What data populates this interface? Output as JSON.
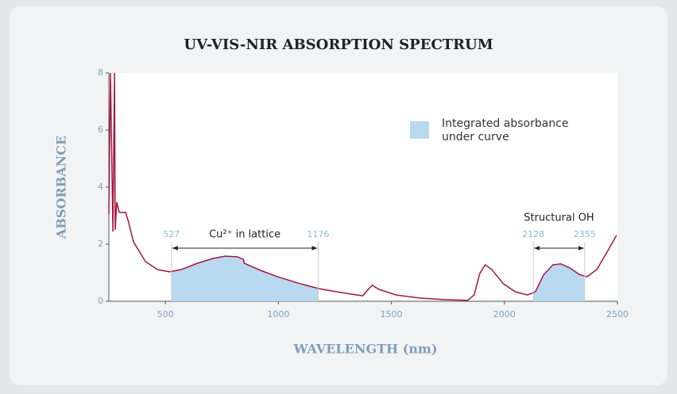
{
  "chart_data": {
    "type": "line",
    "title": "UV-VIS-NIR ABSORPTION SPECTRUM",
    "x_label": "WAVELENGTH (nm)",
    "y_label": "ABSORBANCE",
    "x": [
      250,
      257,
      268,
      275,
      278,
      285,
      296,
      324,
      335,
      359,
      412,
      465,
      518,
      570,
      641,
      711,
      764,
      817,
      845,
      849,
      922,
      996,
      1099,
      1180,
      1275,
      1373,
      1398,
      1415,
      1444,
      1521,
      1627,
      1732,
      1838,
      1866,
      1891,
      1915,
      1944,
      1996,
      2049,
      2102,
      2137,
      2173,
      2215,
      2250,
      2289,
      2331,
      2366,
      2409,
      2454,
      2496
    ],
    "series": [
      {
        "name": "Absorbance",
        "color": "#a3173f",
        "values": [
          3.06,
          8,
          2.44,
          8,
          2.5,
          3.47,
          3.11,
          3.11,
          2.83,
          2.08,
          1.39,
          1.11,
          1.03,
          1.11,
          1.33,
          1.5,
          1.58,
          1.56,
          1.47,
          1.33,
          1.08,
          0.86,
          0.61,
          0.44,
          0.31,
          0.19,
          0.42,
          0.56,
          0.42,
          0.22,
          0.11,
          0.06,
          0.03,
          0.22,
          0.97,
          1.28,
          1.11,
          0.61,
          0.33,
          0.22,
          0.33,
          0.92,
          1.28,
          1.31,
          1.17,
          0.94,
          0.86,
          1.11,
          1.72,
          2.31
        ]
      }
    ],
    "regions": [
      {
        "start": 527,
        "end": 1176,
        "label": "Cu²⁺ in lattice"
      },
      {
        "start": 2128,
        "end": 2355,
        "label": "Structural OH"
      }
    ],
    "region_color": "#b9d9f0",
    "legend": "Integrated absorbance under curve",
    "xlim": [
      250,
      2500
    ],
    "xticks": [
      500,
      1000,
      1500,
      2000,
      2500
    ],
    "ylim": [
      0,
      8
    ],
    "yticks": [
      0,
      2,
      4,
      6,
      8
    ]
  }
}
